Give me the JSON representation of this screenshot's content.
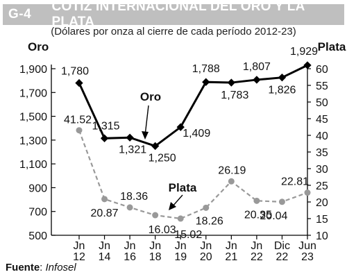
{
  "header": {
    "code": "G-4",
    "title": "COTIZ INTERNACIONAL DEL ORO Y LA PLATA",
    "subtitle": "(Dólares por onza al cierre de cada período 2012-23)"
  },
  "source": {
    "label": "Fuente",
    "separator": ": ",
    "name": "Infosel"
  },
  "chart_data": {
    "type": "line",
    "categories": [
      [
        "Jn",
        "12"
      ],
      [
        "Jn",
        "14"
      ],
      [
        "Jn",
        "16"
      ],
      [
        "Jn",
        "18"
      ],
      [
        "Jn",
        "19"
      ],
      [
        "Jn",
        "20"
      ],
      [
        "Jn",
        "21"
      ],
      [
        "Jn",
        "22"
      ],
      [
        "Dic",
        "22"
      ],
      [
        "Jun",
        "23"
      ]
    ],
    "series": [
      {
        "name": "Oro",
        "axis": "left",
        "values": [
          1780,
          1315,
          1321,
          1250,
          1409,
          1788,
          1783,
          1807,
          1826,
          1929
        ],
        "labels": [
          "1,780",
          "1,315",
          "1,321",
          "1,250",
          "1,409",
          "1,788",
          "1,783",
          "1,807",
          "1,826",
          "1,929"
        ],
        "color": "#000000",
        "style": "solid"
      },
      {
        "name": "Plata",
        "axis": "right",
        "values": [
          41.52,
          20.87,
          18.36,
          16.03,
          15.02,
          18.26,
          26.19,
          20.35,
          20.04,
          22.81
        ],
        "labels": [
          "41.52",
          "20.87",
          "18.36",
          "16.03",
          "15.02",
          "18.26",
          "26.19",
          "20.35",
          "20.04",
          "22.81"
        ],
        "color": "#999999",
        "style": "dashed"
      }
    ],
    "y_left": {
      "label": "Oro",
      "range": [
        500,
        1900
      ],
      "ticks": [
        500,
        700,
        900,
        1100,
        1300,
        1500,
        1700,
        1900
      ],
      "tick_labels": [
        "500",
        "700",
        "900",
        "1,100",
        "1,300",
        "1,500",
        "1,700",
        "1,900"
      ]
    },
    "y_right": {
      "label": "Plata",
      "range": [
        10,
        60
      ],
      "ticks": [
        10,
        15,
        20,
        25,
        30,
        35,
        40,
        45,
        50,
        55,
        60
      ],
      "tick_labels": [
        "10",
        "15",
        "20",
        "25",
        "30",
        "35",
        "40",
        "45",
        "50",
        "55",
        "60"
      ]
    },
    "annotations": [
      {
        "text": "Oro",
        "series": "Oro"
      },
      {
        "text": "Plata",
        "series": "Plata"
      }
    ],
    "grid": false
  }
}
